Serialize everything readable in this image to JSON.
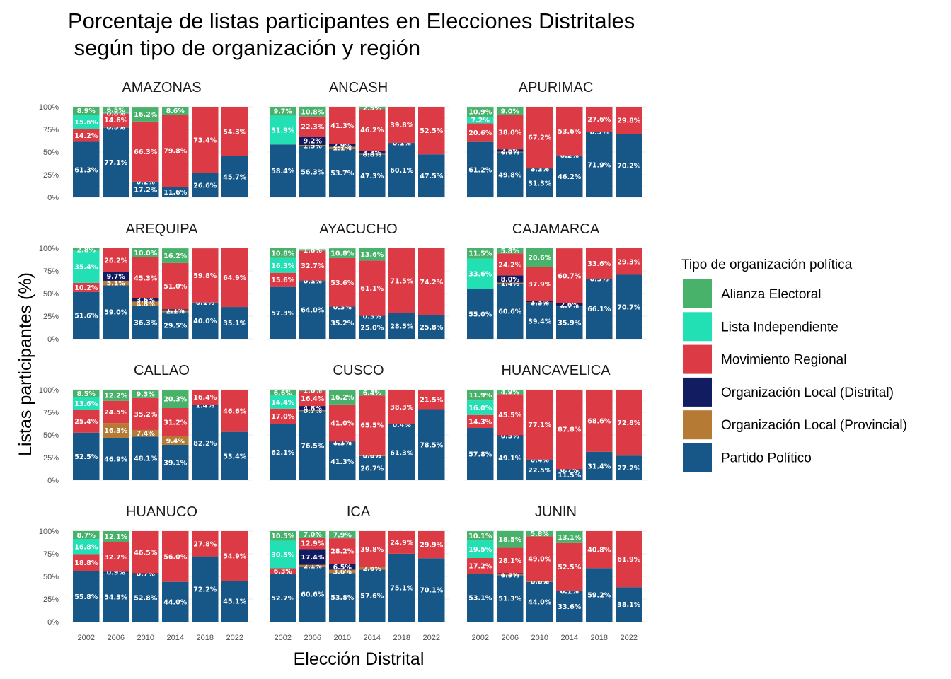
{
  "title_line1": "Porcentaje de listas participantes en Elecciones Distritales",
  "title_line2": " según tipo de organización y región",
  "xlabel": "Elección Distrital",
  "ylabel": "Listas participantes (%)",
  "legend": {
    "title": "Tipo de organización política",
    "items": [
      {
        "key": "AE",
        "label": "Alianza Electoral",
        "color": "#48B16A"
      },
      {
        "key": "LI",
        "label": "Lista Independiente",
        "color": "#22E0B4"
      },
      {
        "key": "MR",
        "label": "Movimiento Regional",
        "color": "#DC3B46"
      },
      {
        "key": "OD",
        "label": "Organización Local (Distrital)",
        "color": "#121C60"
      },
      {
        "key": "OP",
        "label": "Organización Local (Provincial)",
        "color": "#B57A34"
      },
      {
        "key": "PP",
        "label": "Partido Político",
        "color": "#175787"
      }
    ]
  },
  "chart_data": {
    "type": "bar",
    "stacked": true,
    "categories": [
      "2002",
      "2006",
      "2010",
      "2014",
      "2018",
      "2022"
    ],
    "y_ticks": [
      "0%",
      "25%",
      "50%",
      "75%",
      "100%"
    ],
    "ylim": [
      0,
      100
    ],
    "stack_order_bottom_to_top": [
      "PP",
      "OP",
      "OD",
      "MR",
      "LI",
      "AE"
    ],
    "panels": [
      {
        "name": "AMAZONAS",
        "bars": [
          {
            "PP": 61.3,
            "MR": 14.2,
            "LI": 15.6,
            "AE": 8.9
          },
          {
            "PP": 77.1,
            "OD": 0.5,
            "OP": 0.5,
            "MR": 14.6,
            "LI": 0.8,
            "AE": 6.5
          },
          {
            "PP": 17.2,
            "OD": 0.2,
            "MR": 66.3,
            "AE": 16.2
          },
          {
            "PP": 11.6,
            "MR": 79.8,
            "AE": 8.6
          },
          {
            "PP": 26.6,
            "MR": 73.4
          },
          {
            "PP": 45.7,
            "MR": 54.3
          }
        ]
      },
      {
        "name": "ANCASH",
        "bars": [
          {
            "PP": 58.4,
            "LI": 31.9,
            "AE": 9.7
          },
          {
            "PP": 56.3,
            "OP": 1.5,
            "OD": 9.2,
            "MR": 22.3,
            "AE": 10.8
          },
          {
            "PP": 53.7,
            "OP": 2.1,
            "OD": 2.9,
            "MR": 41.3
          },
          {
            "PP": 47.3,
            "OP": 0.8,
            "OD": 3.3,
            "MR": 46.2,
            "AE": 2.5
          },
          {
            "PP": 60.1,
            "OD": 0.1,
            "MR": 39.8
          },
          {
            "PP": 47.5,
            "MR": 52.5
          }
        ]
      },
      {
        "name": "APURIMAC",
        "bars": [
          {
            "PP": 61.2,
            "MR": 20.6,
            "LI": 7.2,
            "AE": 10.9
          },
          {
            "PP": 49.8,
            "OP": 0.6,
            "OD": 2.6,
            "MR": 38.0,
            "AE": 9.0
          },
          {
            "PP": 31.3,
            "OP": 0.2,
            "OD": 1.3,
            "MR": 67.2
          },
          {
            "PP": 46.2,
            "OD": 0.2,
            "MR": 53.6
          },
          {
            "PP": 71.9,
            "OD": 0.5,
            "MR": 27.6
          },
          {
            "PP": 70.2,
            "MR": 29.8
          }
        ]
      },
      {
        "name": "AREQUIPA",
        "bars": [
          {
            "PP": 51.6,
            "MR": 10.2,
            "LI": 35.4,
            "AE": 2.8
          },
          {
            "PP": 59.0,
            "OP": 5.1,
            "OD": 9.7,
            "MR": 26.2
          },
          {
            "PP": 36.3,
            "OP": 4.8,
            "OD": 3.6,
            "MR": 45.3,
            "AE": 10.0
          },
          {
            "PP": 29.5,
            "OP": 2.1,
            "OD": 1.1,
            "MR": 51.0,
            "AE": 16.2
          },
          {
            "PP": 40.0,
            "OD": 0.1,
            "MR": 59.8
          },
          {
            "PP": 35.1,
            "MR": 64.9
          }
        ]
      },
      {
        "name": "AYACUCHO",
        "bars": [
          {
            "PP": 57.3,
            "MR": 15.6,
            "LI": 16.3,
            "AE": 10.8
          },
          {
            "PP": 64.0,
            "OP": 0.1,
            "OD": 0.3,
            "MR": 32.7,
            "AE": 1.8
          },
          {
            "PP": 35.2,
            "OD": 0.3,
            "MR": 53.6,
            "AE": 10.8
          },
          {
            "PP": 25.0,
            "OD": 0.3,
            "MR": 61.1,
            "AE": 13.6
          },
          {
            "PP": 28.5,
            "MR": 71.5
          },
          {
            "PP": 25.8,
            "MR": 74.2
          }
        ]
      },
      {
        "name": "CAJAMARCA",
        "bars": [
          {
            "PP": 55.0,
            "LI": 33.6,
            "AE": 11.5
          },
          {
            "PP": 60.6,
            "OP": 1.4,
            "OD": 8.0,
            "MR": 24.2,
            "AE": 5.8
          },
          {
            "PP": 39.4,
            "OP": 0.8,
            "OD": 1.3,
            "MR": 37.9,
            "AE": 20.6
          },
          {
            "PP": 35.9,
            "OP": 0.7,
            "OD": 2.6,
            "MR": 60.7
          },
          {
            "PP": 66.1,
            "OD": 0.3,
            "MR": 33.6
          },
          {
            "PP": 70.7,
            "MR": 29.3
          }
        ]
      },
      {
        "name": "CALLAO",
        "bars": [
          {
            "PP": 52.5,
            "MR": 25.4,
            "LI": 13.6,
            "AE": 8.5
          },
          {
            "PP": 46.9,
            "OP": 16.3,
            "MR": 24.5,
            "AE": 12.2
          },
          {
            "PP": 48.1,
            "OP": 7.4,
            "MR": 35.2,
            "AE": 9.3
          },
          {
            "PP": 39.1,
            "OP": 9.4,
            "MR": 31.2,
            "AE": 20.3
          },
          {
            "PP": 82.2,
            "OD": 1.4,
            "MR": 16.4
          },
          {
            "PP": 53.4,
            "MR": 46.6
          }
        ]
      },
      {
        "name": "CUSCO",
        "bars": [
          {
            "PP": 62.1,
            "MR": 17.0,
            "LI": 14.4,
            "AE": 6.6
          },
          {
            "PP": 76.5,
            "OP": 0.7,
            "OD": 4.8,
            "MR": 16.4,
            "AE": 1.6
          },
          {
            "PP": 41.3,
            "OP": 0.3,
            "OD": 1.1,
            "MR": 41.0,
            "AE": 16.2
          },
          {
            "PP": 26.7,
            "OP": 0.6,
            "OD": 0.8,
            "MR": 65.5,
            "AE": 6.4
          },
          {
            "PP": 61.3,
            "OD": 0.4,
            "MR": 38.3
          },
          {
            "PP": 78.5,
            "MR": 21.5
          }
        ]
      },
      {
        "name": "HUANCAVELICA",
        "bars": [
          {
            "PP": 57.8,
            "MR": 14.3,
            "LI": 16.0,
            "AE": 11.9
          },
          {
            "PP": 49.1,
            "OD": 0.5,
            "MR": 45.5,
            "AE": 4.9
          },
          {
            "PP": 22.5,
            "OD": 0.4,
            "MR": 77.1
          },
          {
            "PP": 11.5,
            "OD": 0.7,
            "MR": 87.8
          },
          {
            "PP": 31.4,
            "MR": 68.6
          },
          {
            "PP": 27.2,
            "MR": 72.8
          }
        ]
      },
      {
        "name": "HUANUCO",
        "bars": [
          {
            "PP": 55.8,
            "MR": 18.8,
            "LI": 16.8,
            "AE": 8.7
          },
          {
            "PP": 54.3,
            "OD": 0.9,
            "MR": 32.7,
            "AE": 12.1
          },
          {
            "PP": 52.8,
            "OD": 0.7,
            "MR": 46.5
          },
          {
            "PP": 44.0,
            "MR": 56.0
          },
          {
            "PP": 72.2,
            "MR": 27.8
          },
          {
            "PP": 45.1,
            "MR": 54.9
          }
        ]
      },
      {
        "name": "ICA",
        "bars": [
          {
            "PP": 52.7,
            "MR": 6.3,
            "LI": 30.5,
            "AE": 10.5
          },
          {
            "PP": 60.6,
            "OP": 2.1,
            "OD": 17.4,
            "MR": 12.9,
            "AE": 7.0
          },
          {
            "PP": 53.8,
            "OP": 3.6,
            "OD": 6.5,
            "MR": 28.2,
            "AE": 7.9
          },
          {
            "PP": 57.6,
            "OP": 2.6,
            "MR": 39.8
          },
          {
            "PP": 75.1,
            "MR": 24.9
          },
          {
            "PP": 70.1,
            "MR": 29.9
          }
        ]
      },
      {
        "name": "JUNIN",
        "bars": [
          {
            "PP": 53.1,
            "MR": 17.2,
            "LI": 19.5,
            "AE": 10.1
          },
          {
            "PP": 51.3,
            "OP": 0.9,
            "OD": 1.3,
            "MR": 28.1,
            "AE": 18.5
          },
          {
            "PP": 44.0,
            "OP": 0.6,
            "OD": 0.6,
            "MR": 49.0,
            "AE": 5.8
          },
          {
            "PP": 33.6,
            "OP": 0.1,
            "OD": 0.7,
            "MR": 52.5,
            "AE": 13.1
          },
          {
            "PP": 59.2,
            "MR": 40.8
          },
          {
            "PP": 38.1,
            "MR": 61.9
          }
        ]
      }
    ]
  }
}
